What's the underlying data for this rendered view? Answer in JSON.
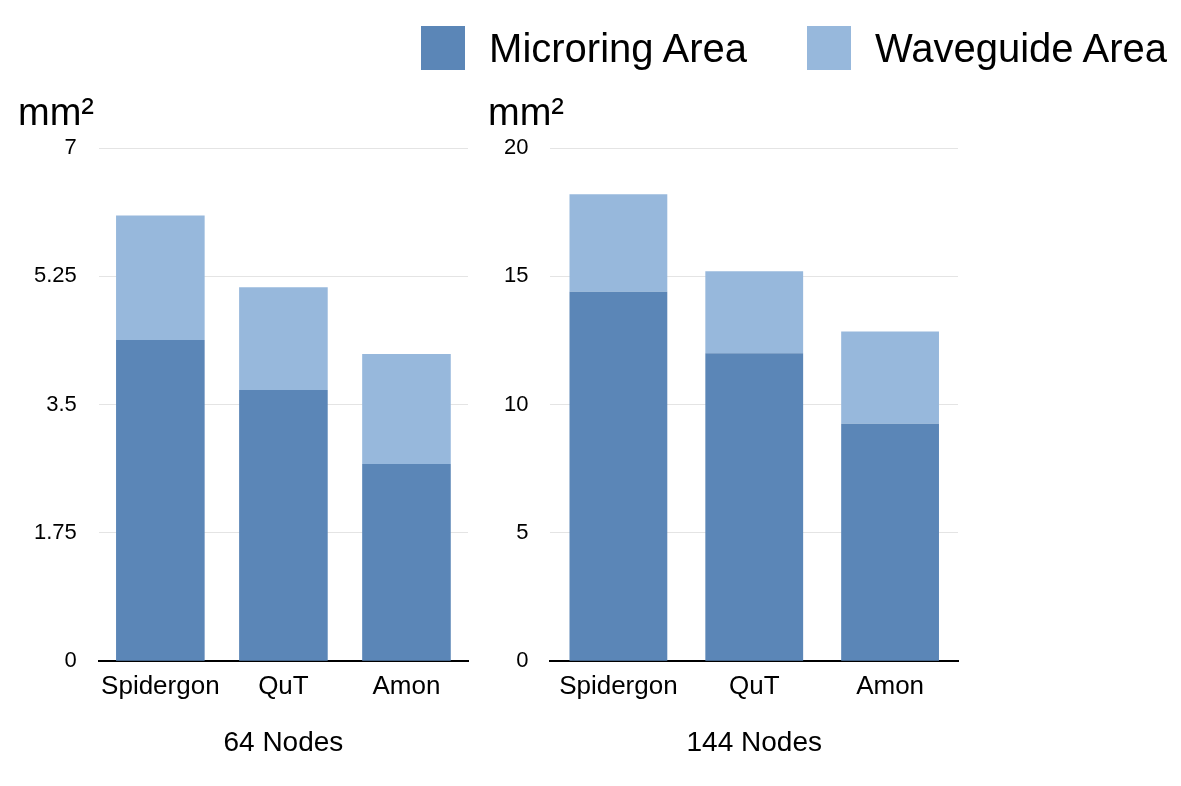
{
  "chart_data": [
    {
      "type": "bar",
      "stacked": true,
      "legend": "top right",
      "grid": "y",
      "xlabel": "64 Nodes",
      "ylabel": "mm²",
      "categories": [
        "Spidergon",
        "QuT",
        "Amon"
      ],
      "ylim": [
        0,
        7
      ],
      "yticks": [
        0,
        1.75,
        3.5,
        5.25,
        7
      ],
      "series": [
        {
          "name": "Microring Area",
          "color": "#5b86b7",
          "values": [
            4.38,
            3.7,
            2.69
          ]
        },
        {
          "name": "Waveguide Area",
          "color": "#97b8dc",
          "values": [
            1.7,
            1.4,
            1.5
          ]
        }
      ]
    },
    {
      "type": "bar",
      "stacked": true,
      "grid": "y",
      "xlabel": "144 Nodes",
      "ylabel": "mm²",
      "categories": [
        "Spidergon",
        "QuT",
        "Amon"
      ],
      "ylim": [
        0,
        20
      ],
      "yticks": [
        0,
        5,
        10,
        15,
        20
      ],
      "series": [
        {
          "name": "Microring Area",
          "color": "#5b86b7",
          "values": [
            14.4,
            12.0,
            9.25
          ]
        },
        {
          "name": "Waveguide Area",
          "color": "#97b8dc",
          "values": [
            3.8,
            3.2,
            3.6
          ]
        }
      ]
    }
  ]
}
